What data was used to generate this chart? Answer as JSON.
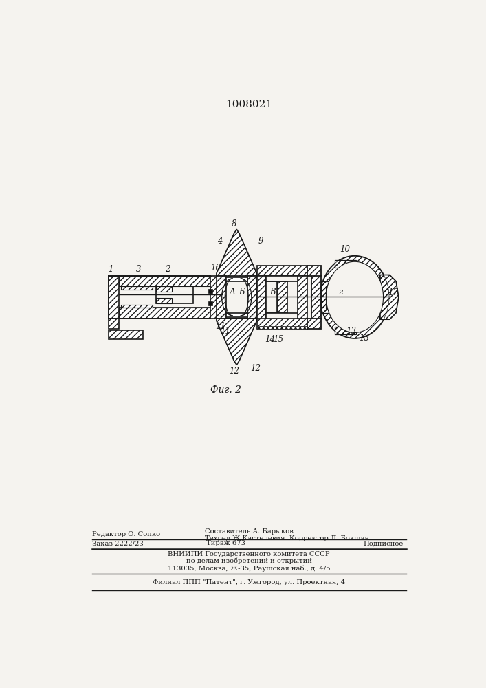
{
  "patent_number": "1008021",
  "fig_label": "Фиг. 2",
  "bg_color": "#f5f3ef",
  "line_color": "#1a1a1a",
  "footer_line1_left": "Редактор О. Сопко",
  "footer_line1_center": "Составитель А. Барыков",
  "footer_line2_center": "Техред Ж.Кастелевич  Корректор Л. Бокшан",
  "footer_line3_left": "Заказ 2222/23",
  "footer_line3_center": "Тираж 673",
  "footer_line3_right": "Подписное",
  "footer_line4": "ВНИИПИ Государственного комитета СССР",
  "footer_line5": "по делам изобретений и открытий",
  "footer_line6": "113035, Москва, Ж-35, Раушская наб., д. 4/5",
  "footer_bottom": "Филиал ППП \"Патент\", г. Ужгород, ул. Проектная, 4"
}
